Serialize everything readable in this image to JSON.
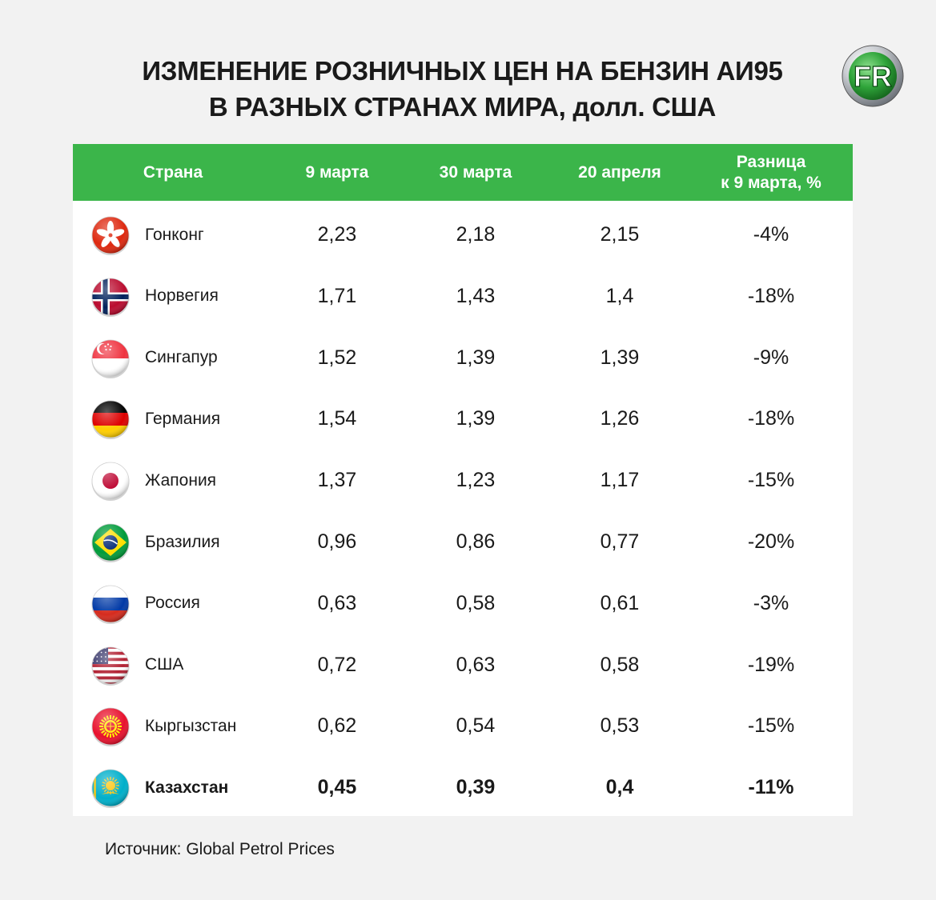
{
  "title_lines": [
    "ИЗМЕНЕНИЕ РОЗНИЧНЫХ ЦЕН НА БЕНЗИН АИ95",
    "В РАЗНЫХ СТРАНАХ МИРА, долл. США"
  ],
  "logo_text": "FR",
  "colors": {
    "header_bg": "#3bb54a",
    "background": "#f2f2f2",
    "table_bg": "#ffffff"
  },
  "chart_data": {
    "type": "table",
    "columns": [
      "Страна",
      "9 марта",
      "30 марта",
      "20 апреля",
      "Разница\nк 9 марта, %"
    ],
    "rows": [
      {
        "flag": "hong-kong-flag",
        "country": "Гонконг",
        "values": [
          "2,23",
          "2,18",
          "2,15",
          "-4%"
        ],
        "bold": false
      },
      {
        "flag": "norway-flag",
        "country": "Норвегия",
        "values": [
          "1,71",
          "1,43",
          "1,4",
          "-18%"
        ],
        "bold": false
      },
      {
        "flag": "singapore-flag",
        "country": "Сингапур",
        "values": [
          "1,52",
          "1,39",
          "1,39",
          "-9%"
        ],
        "bold": false
      },
      {
        "flag": "germany-flag",
        "country": "Германия",
        "values": [
          "1,54",
          "1,39",
          "1,26",
          "-18%"
        ],
        "bold": false
      },
      {
        "flag": "japan-flag",
        "country": "Жапония",
        "values": [
          "1,37",
          "1,23",
          "1,17",
          "-15%"
        ],
        "bold": false
      },
      {
        "flag": "brazil-flag",
        "country": "Бразилия",
        "values": [
          "0,96",
          "0,86",
          "0,77",
          "-20%"
        ],
        "bold": false
      },
      {
        "flag": "russia-flag",
        "country": "Россия",
        "values": [
          "0,63",
          "0,58",
          "0,61",
          "-3%"
        ],
        "bold": false
      },
      {
        "flag": "usa-flag",
        "country": "США",
        "values": [
          "0,72",
          "0,63",
          "0,58",
          "-19%"
        ],
        "bold": false
      },
      {
        "flag": "kyrgyzstan-flag",
        "country": "Кыргызстан",
        "values": [
          "0,62",
          "0,54",
          "0,53",
          "-15%"
        ],
        "bold": false
      },
      {
        "flag": "kazakhstan-flag",
        "country": "Казахстан",
        "values": [
          "0,45",
          "0,39",
          "0,4",
          "-11%"
        ],
        "bold": true
      }
    ]
  },
  "source": "Источник: Global Petrol Prices"
}
